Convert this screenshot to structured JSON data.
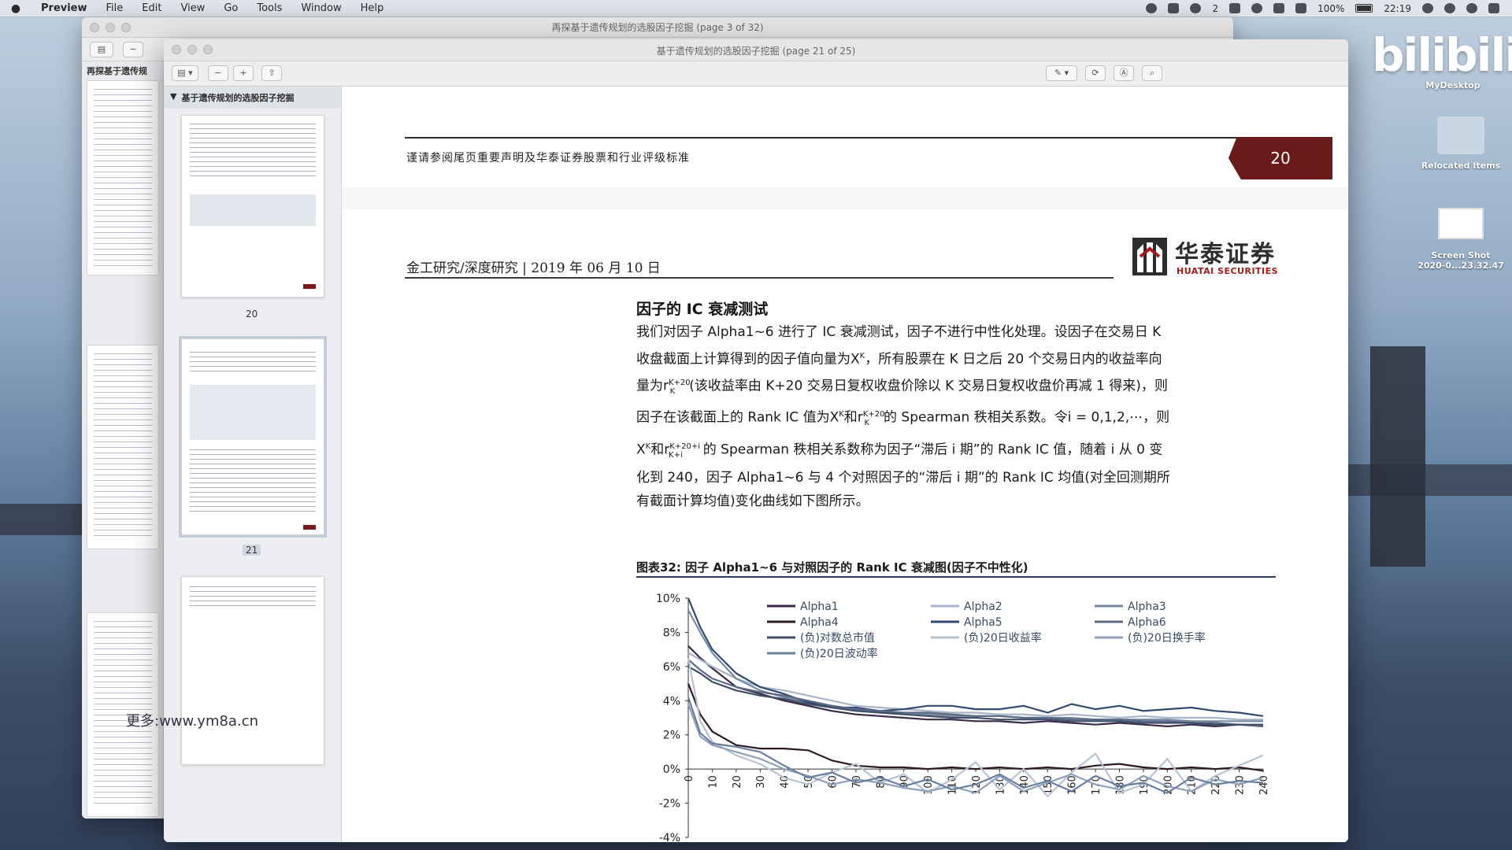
{
  "menubar": {
    "app": "Preview",
    "menus": [
      "File",
      "Edit",
      "View",
      "Go",
      "Tools",
      "Window",
      "Help"
    ],
    "notification_count": "2",
    "battery": "100%",
    "time": "22:19"
  },
  "back_window": {
    "title": "再探基于遗传规划的选股因子挖掘 (page 3 of 32)",
    "sidebar_head": "再探基于遗传规"
  },
  "main_window": {
    "title": "基于遗传规划的选股因子挖掘 (page 21 of 25)",
    "sidebar_head": "基于遗传规划的选股因子挖掘",
    "thumb_labels": [
      "20",
      "21"
    ]
  },
  "document": {
    "notice": "谨请参阅尾页重要声明及华泰证券股票和行业评级标准",
    "page_number": "20",
    "dept": "金工研究/深度研究 | 2019 年 06 月 10 日",
    "logo_cn": "华泰证券",
    "logo_en": "HUATAI SECURITIES",
    "section_title": "因子的 IC 衰减测试",
    "body_lines": [
      "我们对因子 Alpha1~6 进行了 IC 衰减测试，因子不进行中性化处理。设因子在交易日 K",
      "收盘截面上计算得到的因子值向量为X",
      "，所有股票在 K 日之后 20 个交易日内的收益率向",
      "量为r",
      "(该收益率由 K+20 交易日复权收盘价除以 K 交易日复权收盘价再减 1 得来)，则",
      "因子在该截面上的 Rank IC 值为X",
      "和r",
      "的 Spearman 秩相关系数。令i = 0,1,2,⋯，则",
      "X",
      "和r",
      "的 Spearman 秩相关系数称为因子“滞后 i 期”的 Rank IC 值，随着 i 从 0 变",
      "化到 240，因子 Alpha1~6 与 4 个对照因子的“滞后 i 期”的 Rank IC 均值(对全回测期所",
      "有截面计算均值)变化曲线如下图所示。"
    ],
    "sup_K": "K",
    "sup_K20": "K+20",
    "sub_K": "K",
    "sup_K20i": "K+20+i",
    "sub_Ki": "K+i",
    "figure_caption": "图表32:   因子 Alpha1~6 与对照因子的 Rank IC 衰减图(因子不中性化)"
  },
  "chart_data": {
    "type": "line",
    "title": "",
    "xlabel": "",
    "ylabel": "",
    "x": [
      0,
      5,
      10,
      20,
      30,
      40,
      50,
      60,
      70,
      80,
      90,
      100,
      110,
      120,
      130,
      140,
      150,
      160,
      170,
      180,
      190,
      200,
      210,
      220,
      230,
      240
    ],
    "xticks": [
      0,
      10,
      20,
      30,
      40,
      50,
      60,
      70,
      80,
      90,
      100,
      110,
      120,
      130,
      140,
      150,
      160,
      170,
      180,
      190,
      200,
      210,
      220,
      230,
      240
    ],
    "ylim": [
      -4,
      10
    ],
    "yticks": [
      "10%",
      "8%",
      "6%",
      "4%",
      "2%",
      "0%",
      "-2%",
      "-4%"
    ],
    "legend": "top",
    "series": [
      {
        "name": "Alpha1",
        "color": "#3a2a4a",
        "values": [
          7.2,
          6.5,
          5.9,
          4.8,
          4.4,
          4.0,
          3.7,
          3.4,
          3.2,
          3.1,
          3.0,
          2.9,
          2.9,
          2.8,
          2.8,
          2.7,
          2.8,
          2.7,
          2.6,
          2.7,
          2.6,
          2.5,
          2.6,
          2.5,
          2.6,
          2.5
        ]
      },
      {
        "name": "Alpha2",
        "color": "#a8b4c8",
        "values": [
          6.8,
          6.4,
          6.0,
          5.3,
          4.8,
          4.6,
          4.3,
          4.0,
          3.7,
          3.6,
          3.5,
          3.4,
          3.3,
          3.3,
          3.2,
          3.2,
          3.1,
          3.2,
          3.1,
          3.0,
          3.1,
          3.0,
          3.0,
          3.0,
          2.9,
          2.9
        ]
      },
      {
        "name": "Alpha3",
        "color": "#7788a2",
        "values": [
          9.3,
          8.0,
          6.8,
          5.3,
          4.6,
          4.2,
          3.9,
          3.7,
          3.5,
          3.3,
          3.3,
          3.2,
          3.1,
          3.1,
          3.1,
          3.0,
          3.0,
          3.0,
          2.9,
          2.9,
          2.9,
          2.9,
          2.8,
          2.8,
          2.8,
          2.8
        ]
      },
      {
        "name": "Alpha4",
        "color": "#2e1a24",
        "values": [
          5.0,
          3.2,
          2.2,
          1.4,
          1.2,
          1.2,
          1.1,
          0.5,
          0.2,
          0.1,
          0.1,
          0.0,
          0.1,
          0.0,
          0.1,
          0.0,
          0.1,
          0.0,
          0.2,
          0.3,
          0.1,
          0.0,
          0.1,
          0.0,
          0.1,
          -0.1
        ]
      },
      {
        "name": "Alpha5",
        "color": "#334a70",
        "values": [
          10.0,
          8.3,
          7.0,
          5.6,
          4.8,
          4.4,
          3.9,
          3.6,
          3.6,
          3.4,
          3.5,
          3.7,
          3.7,
          3.5,
          3.5,
          3.7,
          3.3,
          3.8,
          3.5,
          3.7,
          3.4,
          3.5,
          3.6,
          3.4,
          3.3,
          3.1
        ]
      },
      {
        "name": "Alpha6",
        "color": "#5a6a86",
        "values": [
          6.4,
          5.8,
          5.3,
          4.8,
          4.5,
          4.3,
          4.0,
          3.7,
          3.5,
          3.4,
          3.3,
          3.3,
          3.2,
          3.1,
          3.1,
          3.0,
          3.0,
          2.9,
          2.9,
          2.9,
          2.8,
          2.8,
          2.7,
          2.7,
          2.6,
          2.5
        ]
      },
      {
        "name": "(负)对数总市值",
        "color": "#3f4e66",
        "values": [
          6.0,
          5.6,
          5.1,
          4.6,
          4.3,
          4.1,
          3.8,
          3.6,
          3.4,
          3.3,
          3.2,
          3.1,
          3.0,
          3.0,
          2.9,
          2.9,
          2.9,
          2.8,
          2.8,
          2.8,
          2.7,
          2.7,
          2.7,
          2.6,
          2.6,
          2.6
        ]
      },
      {
        "name": "(负)20日收益率",
        "color": "#b7c2d2",
        "values": [
          6.5,
          2.8,
          1.6,
          0.8,
          0.3,
          -0.5,
          -0.9,
          -0.2,
          0.3,
          -0.8,
          -0.3,
          -1.4,
          -0.6,
          0.4,
          -1.2,
          0.0,
          -1.6,
          -0.2,
          0.9,
          -1.4,
          -0.9,
          0.6,
          -1.3,
          -0.4,
          0.2,
          0.8
        ]
      },
      {
        "name": "(负)20日换手率",
        "color": "#8fa0b8",
        "values": [
          3.8,
          1.9,
          1.4,
          1.0,
          0.6,
          0.0,
          -0.4,
          -0.9,
          -0.6,
          -0.8,
          -1.1,
          -1.3,
          -1.0,
          -1.4,
          -0.4,
          -1.3,
          -0.8,
          -0.3,
          -0.9,
          -1.2,
          -0.4,
          -1.0,
          -1.3,
          -0.6,
          -0.9,
          -0.5
        ]
      },
      {
        "name": "(负)20日波动率",
        "color": "#6a7f9e",
        "values": [
          4.2,
          2.1,
          1.5,
          1.3,
          1.0,
          0.2,
          -0.5,
          -0.2,
          -0.8,
          -0.5,
          -1.0,
          -0.6,
          -1.2,
          -0.9,
          -0.3,
          -1.1,
          -0.7,
          -1.3,
          -0.4,
          -1.0,
          -0.8,
          -1.4,
          -0.5,
          -0.9,
          -0.7,
          -0.8
        ]
      }
    ]
  },
  "desktop": {
    "bili": "bilibili",
    "mydesktop": "MyDesktop",
    "icons": [
      "Relocated Items",
      "Screen Shot",
      "2020-0...23.32.47"
    ],
    "watermark": "更多:www.ym8a.cn"
  }
}
